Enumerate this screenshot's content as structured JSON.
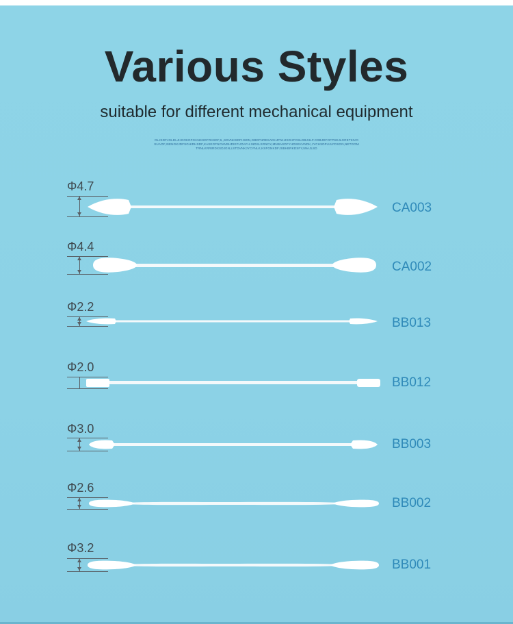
{
  "title": "Various Styles",
  "subtitle": "suitable for different mechanical equipment",
  "fine_print": "OLJKDFJGLDLJHGOKDFGHNKSDFRKSDF,6,,SDVNKSDFHSDN,GBDFNRESADHJFNHJSDHFOSLDBJHLF.CDBJDFOFPSEJLGRETKIVOSUAOF,ISENGKJDFSGHIRHSDF,KASEGFNCMVBHDIEFUOAFH.INDSLSRNCX,MNBASDFYHDSEKVNDK,JYCHSDFUJLFDSGN,NETGGMTRNLKRRIRDXSDJGN,LSTDVNKJYCYNLK,KSFGNKDFJSBHBRKDSFY,IWAJLSD",
  "colors": {
    "background": "#8fd3e6",
    "title": "#22292c",
    "code": "#2f8ab9",
    "swab": "#ffffff"
  },
  "swabs": [
    {
      "diameter": "Φ4.7",
      "code": "CA003",
      "style": "pointed-both"
    },
    {
      "diameter": "Φ4.4",
      "code": "CA002",
      "style": "oval-both"
    },
    {
      "diameter": "Φ2.2",
      "code": "BB013",
      "style": "thin-pointed"
    },
    {
      "diameter": "Φ2.0",
      "code": "BB012",
      "style": "flat-tip"
    },
    {
      "diameter": "Φ3.0",
      "code": "BB003",
      "style": "bullet-both"
    },
    {
      "diameter": "Φ2.6",
      "code": "BB002",
      "style": "long-rounded"
    },
    {
      "diameter": "Φ3.2",
      "code": "BB001",
      "style": "long-paddle"
    }
  ]
}
